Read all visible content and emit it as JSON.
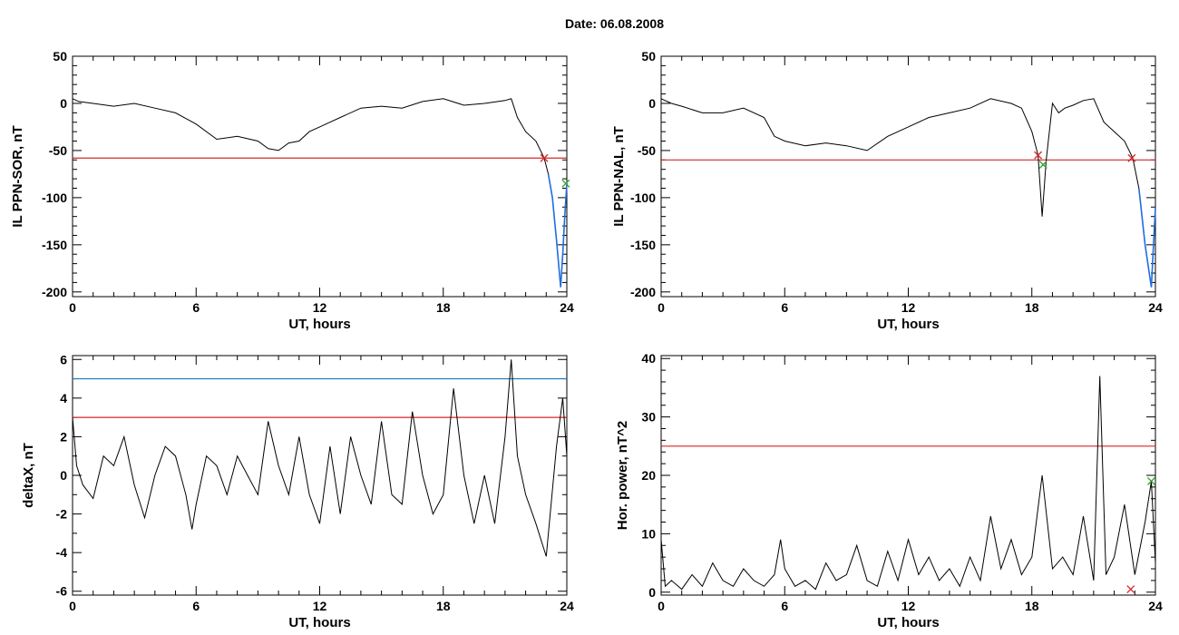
{
  "header": {
    "title": "Date:  06.08.2008"
  },
  "colors": {
    "trace": "#000000",
    "threshold": "#d62728",
    "upper": "#1f77b4",
    "storm": "#1f6fe0",
    "marker_green": "#2ca02c"
  },
  "chart_data": [
    {
      "id": "sor",
      "type": "line",
      "ylabel": "IL PPN-SOR, nT",
      "xlabel": "UT, hours",
      "xlim": [
        0,
        24
      ],
      "ylim": [
        -205,
        50
      ],
      "xticks": [
        "0",
        "6",
        "12",
        "18",
        "24"
      ],
      "yticks": [
        "50",
        "0",
        "-50",
        "-100",
        "-150",
        "-200"
      ],
      "threshold": -58,
      "x": [
        0,
        0.3,
        1,
        2,
        3,
        4,
        5,
        6,
        7,
        8,
        9,
        9.5,
        10,
        10.5,
        11,
        11.5,
        12,
        12.5,
        13,
        14,
        15,
        16,
        17,
        18,
        19,
        20,
        21,
        21.3,
        21.6,
        22,
        22.5,
        22.9,
        23.1,
        23.3,
        23.5,
        23.7,
        23.8,
        23.9,
        24
      ],
      "y": [
        5,
        2,
        0,
        -3,
        0,
        -5,
        -10,
        -22,
        -38,
        -35,
        -40,
        -48,
        -50,
        -42,
        -40,
        -30,
        -25,
        -20,
        -15,
        -5,
        -3,
        -5,
        2,
        5,
        -2,
        0,
        3,
        5,
        -15,
        -30,
        -40,
        -58,
        -75,
        -100,
        -145,
        -195,
        -160,
        -120,
        -85
      ],
      "markers": [
        {
          "x": 22.9,
          "y": -58,
          "color": "red"
        },
        {
          "x": 23.95,
          "y": -85,
          "color": "green"
        }
      ]
    },
    {
      "id": "nal",
      "type": "line",
      "ylabel": "IL PPN-NAL, nT",
      "xlabel": "UT, hours",
      "xlim": [
        0,
        24
      ],
      "ylim": [
        -205,
        50
      ],
      "xticks": [
        "0",
        "6",
        "12",
        "18",
        "24"
      ],
      "yticks": [
        "50",
        "0",
        "-50",
        "-100",
        "-150",
        "-200"
      ],
      "threshold": -60,
      "x": [
        0,
        0.5,
        1,
        2,
        3,
        4,
        5,
        5.5,
        6,
        7,
        8,
        9,
        10,
        11,
        12,
        13,
        14,
        15,
        16,
        17,
        17.5,
        18,
        18.3,
        18.5,
        18.7,
        19,
        19.3,
        19.6,
        20,
        20.5,
        21,
        21.5,
        22,
        22.5,
        22.9,
        23.2,
        23.5,
        23.8,
        24
      ],
      "y": [
        5,
        0,
        -3,
        -10,
        -10,
        -5,
        -15,
        -35,
        -40,
        -45,
        -42,
        -45,
        -50,
        -35,
        -25,
        -15,
        -10,
        -5,
        5,
        0,
        -5,
        -30,
        -55,
        -120,
        -60,
        0,
        -10,
        -5,
        -2,
        3,
        5,
        -20,
        -30,
        -40,
        -58,
        -90,
        -150,
        -195,
        -110
      ],
      "markers": [
        {
          "x": 18.3,
          "y": -55,
          "color": "red"
        },
        {
          "x": 18.55,
          "y": -65,
          "color": "green"
        },
        {
          "x": 22.85,
          "y": -58,
          "color": "red"
        }
      ]
    },
    {
      "id": "deltax",
      "type": "line",
      "ylabel": "deltaX, nT",
      "xlabel": "UT, hours",
      "xlim": [
        0,
        24
      ],
      "ylim": [
        -6.2,
        6.2
      ],
      "xticks": [
        "0",
        "6",
        "12",
        "18",
        "24"
      ],
      "yticks": [
        "6",
        "4",
        "2",
        "0",
        "-2",
        "-4",
        "-6"
      ],
      "threshold": 3,
      "upper_line": 5,
      "x": [
        0,
        0.2,
        0.5,
        1,
        1.5,
        2,
        2.5,
        3,
        3.5,
        4,
        4.5,
        5,
        5.5,
        5.8,
        6,
        6.5,
        7,
        7.5,
        8,
        8.5,
        9,
        9.5,
        10,
        10.5,
        11,
        11.5,
        12,
        12.5,
        13,
        13.5,
        14,
        14.5,
        15,
        15.5,
        16,
        16.5,
        17,
        17.5,
        18,
        18.5,
        19,
        19.5,
        20,
        20.5,
        21,
        21.3,
        21.6,
        22,
        22.5,
        23,
        23.5,
        23.8,
        24
      ],
      "y": [
        3,
        0.5,
        -0.5,
        -1.2,
        1,
        0.5,
        2,
        -0.5,
        -2.2,
        0,
        1.5,
        1,
        -1,
        -2.8,
        -1.5,
        1,
        0.5,
        -1,
        1,
        0,
        -1,
        2.8,
        0.5,
        -1,
        2,
        -1,
        -2.5,
        1.5,
        -2,
        2,
        0,
        -1.5,
        2.8,
        -1,
        -1.5,
        3.3,
        0,
        -2,
        -1,
        4.5,
        0,
        -2.5,
        0,
        -2.5,
        2,
        6,
        1,
        -1,
        -2.5,
        -4.2,
        1.5,
        4,
        1
      ]
    },
    {
      "id": "power",
      "type": "line",
      "ylabel": "Hor. power, nT^2",
      "xlabel": "UT, hours",
      "xlim": [
        0,
        24
      ],
      "ylim": [
        -0.5,
        40.5
      ],
      "xticks": [
        "0",
        "6",
        "12",
        "18",
        "24"
      ],
      "yticks": [
        "40",
        "30",
        "20",
        "10",
        "0"
      ],
      "threshold": 25,
      "x": [
        0,
        0.2,
        0.5,
        1,
        1.5,
        2,
        2.5,
        3,
        3.5,
        4,
        4.5,
        5,
        5.5,
        5.8,
        6,
        6.5,
        7,
        7.5,
        8,
        8.5,
        9,
        9.5,
        10,
        10.5,
        11,
        11.5,
        12,
        12.5,
        13,
        13.5,
        14,
        14.5,
        15,
        15.5,
        16,
        16.5,
        17,
        17.5,
        18,
        18.5,
        19,
        19.5,
        20,
        20.5,
        21,
        21.3,
        21.6,
        22,
        22.5,
        23,
        23.5,
        23.8,
        24
      ],
      "y": [
        9,
        1,
        2,
        0.5,
        3,
        1,
        5,
        2,
        1,
        4,
        2,
        1,
        3,
        9,
        4,
        1,
        2,
        0.5,
        5,
        2,
        3,
        8,
        2,
        1,
        7,
        2,
        9,
        3,
        6,
        2,
        4,
        1,
        6,
        2,
        13,
        4,
        9,
        3,
        6,
        20,
        4,
        6,
        3,
        13,
        2,
        37,
        3,
        6,
        15,
        3,
        12,
        19,
        5
      ],
      "markers": [
        {
          "x": 22.8,
          "y": 0.5,
          "color": "red"
        },
        {
          "x": 23.8,
          "y": 19,
          "color": "green"
        }
      ]
    }
  ]
}
